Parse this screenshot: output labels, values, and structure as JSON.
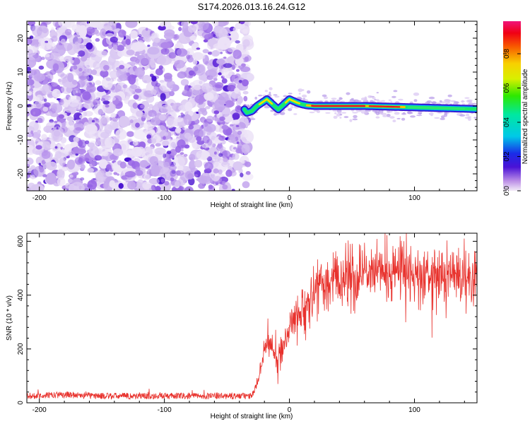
{
  "title": "S174.2026.013.16.24.G12",
  "chart_data": [
    {
      "type": "heatmap",
      "xlabel": "Height of straight line (km)",
      "ylabel": "Frequency (Hz)",
      "xlim": [
        -210,
        150
      ],
      "ylim": [
        -25,
        25
      ],
      "x_ticks": [
        -200,
        -100,
        0,
        100
      ],
      "x_tick_labels": [
        "-200",
        "-100",
        "0",
        "100"
      ],
      "y_ticks": [
        -20,
        -10,
        0,
        10,
        20
      ],
      "y_tick_labels": [
        "-20",
        "-10",
        "0",
        "10",
        "20"
      ],
      "noise_region": [
        -210,
        -33
      ],
      "signal_region": [
        -36,
        150
      ],
      "colorbar": {
        "label": "Normalized spectral amplitude",
        "range": [
          0,
          0.99
        ],
        "ticks": [
          0.0,
          0.2,
          0.4,
          0.6,
          0.8
        ],
        "tick_labels": [
          "0.0",
          "0.2",
          "0.4",
          "0.6",
          "0.8"
        ]
      },
      "ridge": {
        "x": [
          -36,
          -34,
          -30,
          -26,
          -22,
          -18,
          -15,
          -12,
          -9,
          -6,
          -3,
          0,
          3,
          6,
          10,
          14,
          20,
          30,
          40,
          50,
          60,
          70,
          80,
          90,
          100,
          110,
          120,
          130,
          140,
          150
        ],
        "freq": [
          -1,
          -2,
          -1.5,
          0,
          1,
          2,
          1,
          0,
          -1,
          0,
          1,
          2,
          1.5,
          1,
          0.5,
          0.2,
          0,
          0,
          0,
          0,
          0,
          -0.1,
          -0.2,
          -0.3,
          -0.4,
          -0.5,
          -0.6,
          -0.7,
          -0.8,
          -0.9
        ]
      }
    },
    {
      "type": "line",
      "xlabel": "Height of straight line (km)",
      "ylabel": "SNR (10 * v/v)",
      "xlim": [
        -210,
        150
      ],
      "ylim": [
        0,
        630
      ],
      "x_ticks": [
        -200,
        -100,
        0,
        100
      ],
      "x_tick_labels": [
        "-200",
        "-100",
        "0",
        "100"
      ],
      "y_ticks": [
        0,
        200,
        400,
        600
      ],
      "y_tick_labels": [
        "0",
        "200",
        "400",
        "600"
      ],
      "color": "#e8322d",
      "series": [
        {
          "name": "SNR",
          "x": [
            -210,
            -180,
            -150,
            -120,
            -90,
            -60,
            -40,
            -30,
            -25,
            -20,
            -15,
            -10,
            -5,
            0,
            5,
            10,
            15,
            20,
            25,
            30,
            40,
            50,
            60,
            70,
            80,
            90,
            100,
            110,
            120,
            130,
            140,
            150
          ],
          "y": [
            25,
            30,
            25,
            25,
            25,
            25,
            25,
            25,
            80,
            200,
            230,
            160,
            210,
            280,
            320,
            350,
            380,
            420,
            440,
            460,
            470,
            480,
            485,
            490,
            495,
            490,
            485,
            480,
            480,
            475,
            470,
            470
          ]
        }
      ]
    }
  ]
}
